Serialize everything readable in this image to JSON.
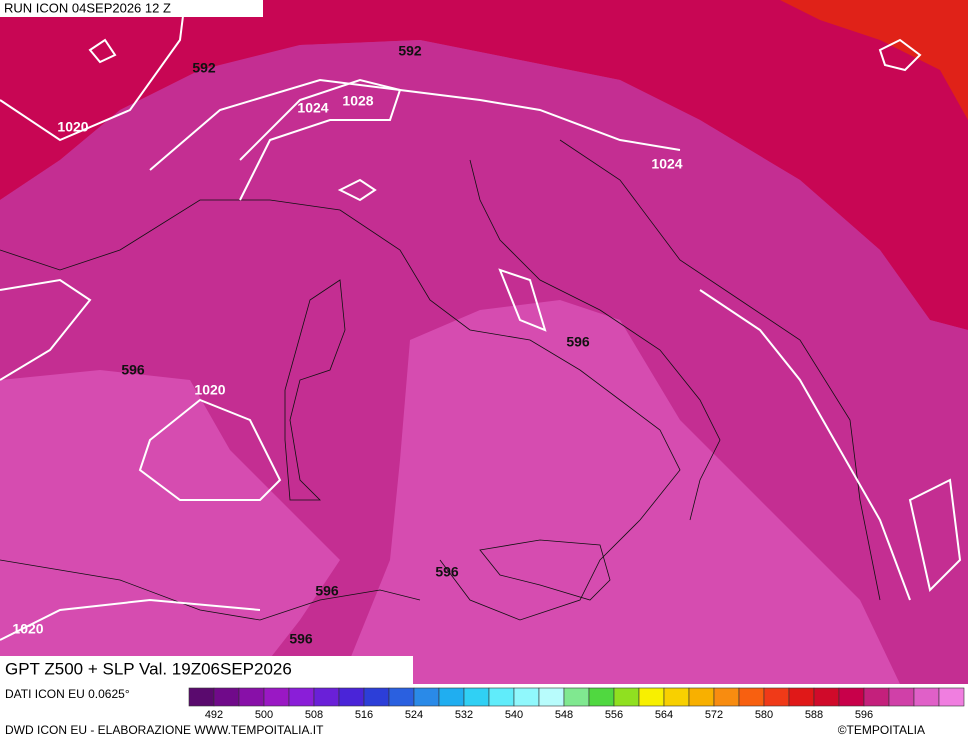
{
  "header": {
    "run": "RUN ICON 04SEP2026 12 Z"
  },
  "map": {
    "contour_labels": [
      "592",
      "592",
      "1024",
      "1028",
      "1020",
      "1024",
      "596",
      "596",
      "1020",
      "596",
      "596",
      "596",
      "1020"
    ]
  },
  "footer": {
    "title": "GPT Z500 + SLP Val. 19Z06SEP2026",
    "source": "DATI ICON EU 0.0625°",
    "credit": "DWD ICON EU - ELABORAZIONE WWW.TEMPOITALIA.IT",
    "copyright": "©TEMPOITALIA"
  },
  "legend": {
    "labels": [
      "492",
      "500",
      "508",
      "516",
      "524",
      "532",
      "540",
      "548",
      "556",
      "564",
      "572",
      "580",
      "588",
      "596"
    ],
    "colors": [
      "#5a0a6e",
      "#700a8a",
      "#8810a8",
      "#9a18c4",
      "#8a1ed8",
      "#6a20d8",
      "#4a24d8",
      "#2c3ed8",
      "#2a60e0",
      "#2a8ae8",
      "#20aef0",
      "#30d0f4",
      "#60ecfa",
      "#90f8fc",
      "#b8fcfc",
      "#80e890",
      "#50d840",
      "#90e020",
      "#f8f000",
      "#f8d000",
      "#f8b000",
      "#f88c10",
      "#f86010",
      "#f03a18",
      "#e01818",
      "#d00a2a",
      "#c8004a",
      "#c4207c",
      "#d040a8",
      "#e060c8",
      "#f07ee0"
    ]
  }
}
